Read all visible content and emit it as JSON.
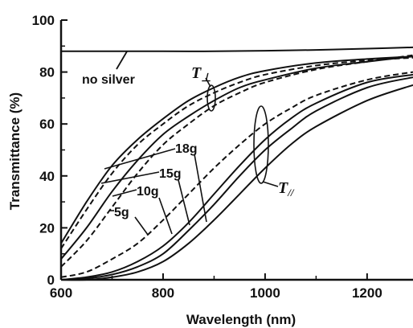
{
  "chart_data": {
    "type": "line",
    "xlabel": "Wavelength (nm)",
    "ylabel": "Transmittance (%)",
    "xlim": [
      600,
      1290
    ],
    "ylim": [
      0,
      100
    ],
    "xticks": [
      "600",
      "800",
      "1000",
      "1200"
    ],
    "yticks": [
      "0",
      "20",
      "40",
      "60",
      "80",
      "100"
    ],
    "grid": false,
    "legend": "none",
    "annotations": {
      "no_silver": "no silver",
      "t_perp": "T",
      "t_perp_sub": "⊥",
      "t_par": "T",
      "t_par_sub": "//",
      "label_18g": "18g",
      "label_15g": "15g",
      "label_10g": "10g",
      "label_5g": "5g"
    },
    "series": [
      {
        "group": "no silver",
        "style": "solid",
        "x": [
          600,
          700,
          800,
          900,
          1000,
          1100,
          1200,
          1290
        ],
        "y": [
          88,
          88,
          88,
          88,
          88.2,
          88.5,
          89,
          89.5
        ]
      },
      {
        "group": "T_perp 5g",
        "style": "solid",
        "x": [
          600,
          650,
          700,
          750,
          800,
          850,
          900,
          950,
          1000,
          1100,
          1200,
          1290
        ],
        "y": [
          14,
          30,
          44,
          54,
          62,
          69,
          74,
          78,
          80.5,
          83.5,
          85,
          86
        ]
      },
      {
        "group": "T_perp 10g",
        "style": "dashed",
        "x": [
          600,
          650,
          700,
          750,
          800,
          850,
          900,
          950,
          1000,
          1100,
          1200,
          1290
        ],
        "y": [
          12,
          27,
          41,
          52,
          60,
          67,
          72,
          76,
          79,
          82.5,
          84.5,
          85.5
        ]
      },
      {
        "group": "T_perp 15g",
        "style": "solid",
        "x": [
          600,
          650,
          700,
          750,
          800,
          850,
          900,
          950,
          1000,
          1100,
          1200,
          1290
        ],
        "y": [
          8,
          20,
          34,
          46,
          56,
          63,
          69,
          74,
          77,
          81.5,
          84,
          86
        ]
      },
      {
        "group": "T_perp 18g",
        "style": "dashed",
        "x": [
          600,
          650,
          700,
          750,
          800,
          850,
          900,
          950,
          1000,
          1100,
          1200,
          1290
        ],
        "y": [
          5,
          15,
          28,
          41,
          52,
          60,
          67,
          72,
          76,
          81,
          84,
          86.5
        ]
      },
      {
        "group": "T_par 5g",
        "style": "dashed",
        "x": [
          600,
          650,
          700,
          750,
          800,
          850,
          900,
          950,
          1000,
          1050,
          1100,
          1200,
          1290
        ],
        "y": [
          1,
          3,
          8,
          14,
          23,
          33,
          43,
          52,
          60,
          66,
          71,
          77,
          80
        ]
      },
      {
        "group": "T_par 10g",
        "style": "solid",
        "x": [
          600,
          650,
          700,
          750,
          800,
          850,
          900,
          950,
          1000,
          1050,
          1100,
          1200,
          1290
        ],
        "y": [
          0,
          1,
          3,
          7,
          13,
          22,
          33,
          44,
          54,
          62,
          68,
          76,
          79
        ]
      },
      {
        "group": "T_par 15g",
        "style": "solid",
        "x": [
          600,
          650,
          700,
          750,
          800,
          850,
          900,
          950,
          1000,
          1050,
          1100,
          1200,
          1290
        ],
        "y": [
          0,
          0.5,
          2,
          5,
          10,
          19,
          29,
          40,
          50,
          58,
          65,
          74,
          78
        ]
      },
      {
        "group": "T_par 18g",
        "style": "solid",
        "x": [
          600,
          650,
          700,
          750,
          800,
          850,
          900,
          950,
          1000,
          1050,
          1100,
          1200,
          1290
        ],
        "y": [
          0,
          0,
          1,
          3,
          7,
          14,
          23,
          33,
          43,
          52,
          59,
          69,
          75
        ]
      }
    ]
  }
}
